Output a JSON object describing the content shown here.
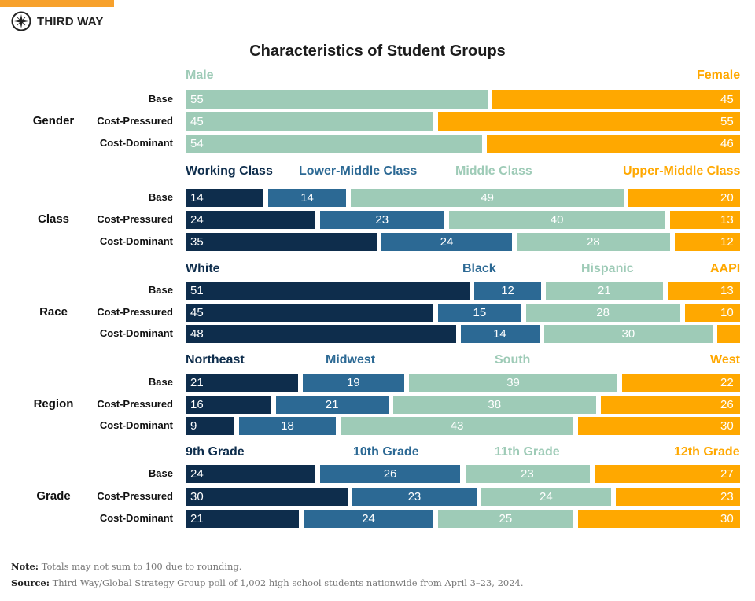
{
  "brand": {
    "name": "THIRD WAY",
    "icon": "compass-star-icon",
    "accent": "#f7a12c"
  },
  "chart_data": {
    "type": "bar",
    "orientation": "horizontal",
    "stacked": "100%",
    "title": "Characteristics of Student Groups",
    "row_labels": [
      "Base",
      "Cost-Pressured",
      "Cost-Dominant"
    ],
    "colors": [
      "#0e2d4c",
      "#2c6994",
      "#9ecbb7",
      "#ffa800"
    ],
    "groups": [
      {
        "name": "Gender",
        "series": [
          "Male",
          "Female"
        ],
        "colors": [
          "#9ecbb7",
          "#ffa800"
        ],
        "values": [
          [
            55,
            45
          ],
          [
            45,
            55
          ],
          [
            54,
            46
          ]
        ],
        "labels": [
          [
            "55",
            "45"
          ],
          [
            "45",
            "55"
          ],
          [
            "54",
            "46"
          ]
        ]
      },
      {
        "name": "Class",
        "series": [
          "Working Class",
          "Lower-Middle Class",
          "Middle Class",
          "Upper-Middle Class"
        ],
        "values": [
          [
            14,
            14,
            49,
            20
          ],
          [
            24,
            23,
            40,
            13
          ],
          [
            35,
            24,
            28,
            12
          ]
        ],
        "labels": [
          [
            "14",
            "14",
            "49",
            "20"
          ],
          [
            "24",
            "23",
            "40",
            "13"
          ],
          [
            "35",
            "24",
            "28",
            "12"
          ]
        ]
      },
      {
        "name": "Race",
        "series": [
          "White",
          "Black",
          "Hispanic",
          "AAPI"
        ],
        "values": [
          [
            51,
            12,
            21,
            13
          ],
          [
            45,
            15,
            28,
            10
          ],
          [
            48,
            14,
            30,
            4
          ]
        ],
        "labels": [
          [
            "51",
            "12",
            "21",
            "13"
          ],
          [
            "45",
            "15",
            "28",
            "10"
          ],
          [
            "48",
            "14",
            "30",
            ""
          ]
        ]
      },
      {
        "name": "Region",
        "series": [
          "Northeast",
          "Midwest",
          "South",
          "West"
        ],
        "values": [
          [
            21,
            19,
            39,
            22
          ],
          [
            16,
            21,
            38,
            26
          ],
          [
            9,
            18,
            43,
            30
          ]
        ],
        "labels": [
          [
            "21",
            "19",
            "39",
            "22"
          ],
          [
            "16",
            "21",
            "38",
            "26"
          ],
          [
            "9",
            "18",
            "43",
            "30"
          ]
        ]
      },
      {
        "name": "Grade",
        "series": [
          "9th Grade",
          "10th Grade",
          "11th Grade",
          "12th Grade"
        ],
        "values": [
          [
            24,
            26,
            23,
            27
          ],
          [
            30,
            23,
            24,
            23
          ],
          [
            21,
            24,
            25,
            30
          ]
        ],
        "labels": [
          [
            "24",
            "26",
            "23",
            "27"
          ],
          [
            "30",
            "23",
            "24",
            "23"
          ],
          [
            "21",
            "24",
            "25",
            "30"
          ]
        ]
      }
    ]
  },
  "footer": {
    "note_label": "Note:",
    "note": "Totals may not sum to 100 due to rounding.",
    "source_label": "Source:",
    "source": "Third Way/Global Strategy Group poll of 1,002 high school students nationwide from April 3–23, 2024."
  }
}
